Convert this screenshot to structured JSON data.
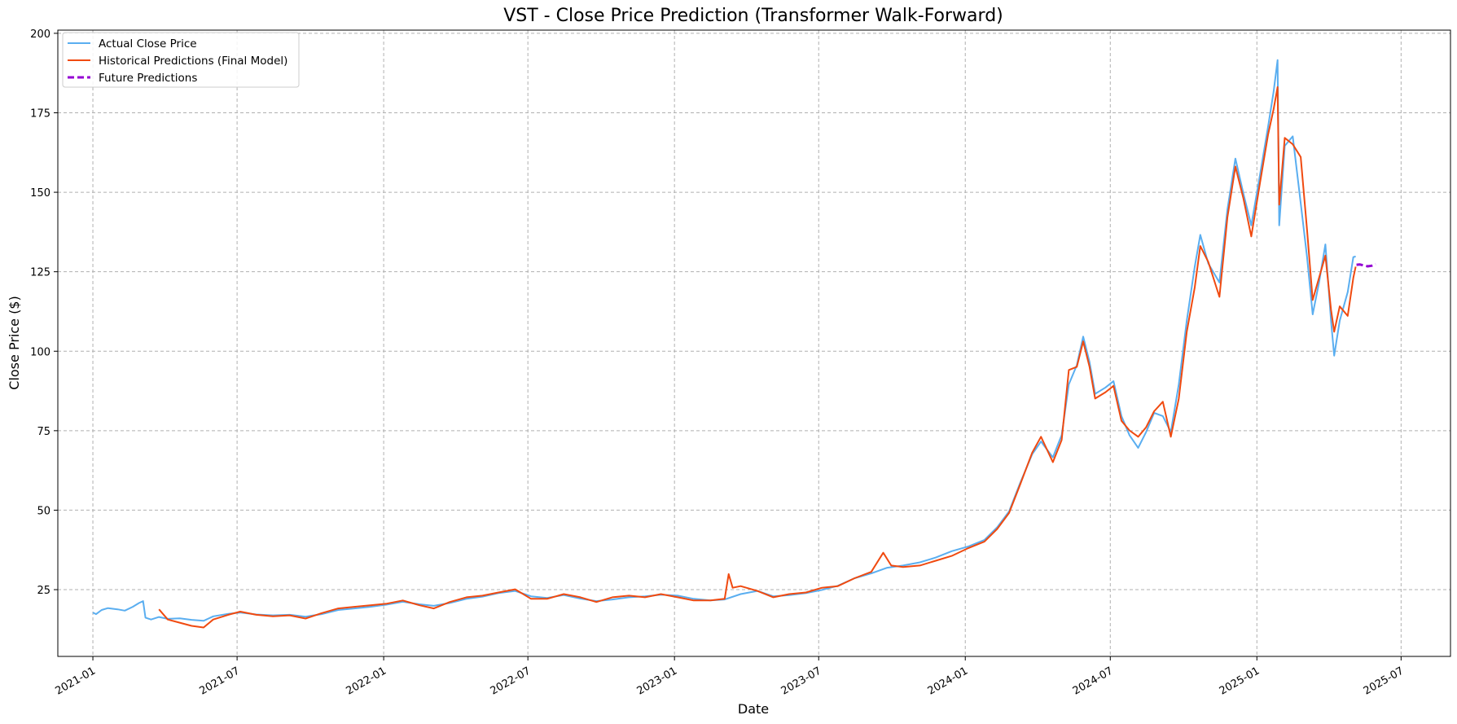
{
  "chart_data": {
    "type": "line",
    "title": "VST - Close Price Prediction (Transformer Walk-Forward)",
    "xlabel": "Date",
    "ylabel": "Close Price ($)",
    "xlim": [
      "2020-11-18",
      "2025-09-01"
    ],
    "ylim": [
      4,
      201
    ],
    "x_ticks": [
      "2021-01",
      "2021-07",
      "2022-01",
      "2022-07",
      "2023-01",
      "2023-07",
      "2024-01",
      "2024-07",
      "2025-01",
      "2025-07"
    ],
    "y_ticks": [
      25,
      50,
      75,
      100,
      125,
      150,
      175,
      200
    ],
    "grid": true,
    "legend_position": "upper-left",
    "series": [
      {
        "name": "Actual Close Price",
        "color": "#5aaef0",
        "style": "solid",
        "points": [
          [
            "2021-01-01",
            17.8
          ],
          [
            "2021-01-05",
            17.3
          ],
          [
            "2021-01-12",
            18.6
          ],
          [
            "2021-01-20",
            19.2
          ],
          [
            "2021-02-01",
            18.8
          ],
          [
            "2021-02-10",
            18.4
          ],
          [
            "2021-02-20",
            19.6
          ],
          [
            "2021-02-28",
            20.8
          ],
          [
            "2021-03-05",
            21.4
          ],
          [
            "2021-03-08",
            16.2
          ],
          [
            "2021-03-15",
            15.6
          ],
          [
            "2021-03-25",
            16.4
          ],
          [
            "2021-04-05",
            15.8
          ],
          [
            "2021-04-20",
            16.0
          ],
          [
            "2021-05-05",
            15.5
          ],
          [
            "2021-05-20",
            15.2
          ],
          [
            "2021-06-01",
            16.6
          ],
          [
            "2021-06-20",
            17.4
          ],
          [
            "2021-07-05",
            17.8
          ],
          [
            "2021-07-25",
            17.2
          ],
          [
            "2021-08-15",
            16.9
          ],
          [
            "2021-09-05",
            17.1
          ],
          [
            "2021-09-25",
            16.5
          ],
          [
            "2021-10-15",
            17.3
          ],
          [
            "2021-11-05",
            18.6
          ],
          [
            "2021-11-25",
            19.1
          ],
          [
            "2021-12-15",
            19.6
          ],
          [
            "2022-01-05",
            20.3
          ],
          [
            "2022-01-25",
            21.2
          ],
          [
            "2022-02-15",
            20.4
          ],
          [
            "2022-03-05",
            19.9
          ],
          [
            "2022-03-25",
            20.8
          ],
          [
            "2022-04-15",
            22.1
          ],
          [
            "2022-05-05",
            22.8
          ],
          [
            "2022-05-25",
            23.9
          ],
          [
            "2022-06-15",
            24.6
          ],
          [
            "2022-07-05",
            22.9
          ],
          [
            "2022-07-25",
            22.4
          ],
          [
            "2022-08-15",
            23.3
          ],
          [
            "2022-09-05",
            22.2
          ],
          [
            "2022-09-25",
            21.4
          ],
          [
            "2022-10-15",
            21.9
          ],
          [
            "2022-11-05",
            22.6
          ],
          [
            "2022-11-25",
            22.9
          ],
          [
            "2022-12-15",
            23.4
          ],
          [
            "2023-01-05",
            23.1
          ],
          [
            "2023-01-25",
            22.1
          ],
          [
            "2023-02-15",
            21.6
          ],
          [
            "2023-03-05",
            21.9
          ],
          [
            "2023-03-25",
            23.6
          ],
          [
            "2023-04-15",
            24.6
          ],
          [
            "2023-05-05",
            22.9
          ],
          [
            "2023-05-25",
            23.3
          ],
          [
            "2023-06-15",
            23.9
          ],
          [
            "2023-07-05",
            24.9
          ],
          [
            "2023-07-25",
            26.2
          ],
          [
            "2023-08-15",
            28.6
          ],
          [
            "2023-09-05",
            30.1
          ],
          [
            "2023-09-25",
            31.9
          ],
          [
            "2023-10-15",
            32.6
          ],
          [
            "2023-11-05",
            33.6
          ],
          [
            "2023-11-25",
            35.1
          ],
          [
            "2023-12-15",
            37.1
          ],
          [
            "2024-01-05",
            38.6
          ],
          [
            "2024-01-25",
            40.6
          ],
          [
            "2024-02-10",
            44.6
          ],
          [
            "2024-02-25",
            49.6
          ],
          [
            "2024-03-10",
            58.6
          ],
          [
            "2024-03-25",
            67.6
          ],
          [
            "2024-04-05",
            71.6
          ],
          [
            "2024-04-20",
            66.6
          ],
          [
            "2024-05-01",
            73.6
          ],
          [
            "2024-05-10",
            89.6
          ],
          [
            "2024-05-20",
            95.6
          ],
          [
            "2024-05-28",
            104.6
          ],
          [
            "2024-06-05",
            96.6
          ],
          [
            "2024-06-12",
            86.6
          ],
          [
            "2024-06-25",
            88.6
          ],
          [
            "2024-07-05",
            90.6
          ],
          [
            "2024-07-15",
            79.6
          ],
          [
            "2024-07-25",
            73.6
          ],
          [
            "2024-08-05",
            69.6
          ],
          [
            "2024-08-15",
            74.6
          ],
          [
            "2024-08-25",
            80.6
          ],
          [
            "2024-09-05",
            79.6
          ],
          [
            "2024-09-15",
            74.6
          ],
          [
            "2024-09-25",
            89.6
          ],
          [
            "2024-10-05",
            109.6
          ],
          [
            "2024-10-15",
            126.6
          ],
          [
            "2024-10-22",
            136.6
          ],
          [
            "2024-11-01",
            127.6
          ],
          [
            "2024-11-15",
            121.6
          ],
          [
            "2024-11-25",
            144.6
          ],
          [
            "2024-12-05",
            160.6
          ],
          [
            "2024-12-15",
            149.6
          ],
          [
            "2024-12-25",
            139.6
          ],
          [
            "2025-01-05",
            155.6
          ],
          [
            "2025-01-15",
            170.6
          ],
          [
            "2025-01-22",
            181.6
          ],
          [
            "2025-01-27",
            191.6
          ],
          [
            "2025-01-29",
            139.6
          ],
          [
            "2025-02-05",
            164.6
          ],
          [
            "2025-02-15",
            167.6
          ],
          [
            "2025-02-25",
            146.6
          ],
          [
            "2025-03-05",
            129.6
          ],
          [
            "2025-03-12",
            111.6
          ],
          [
            "2025-03-20",
            121.6
          ],
          [
            "2025-03-28",
            133.6
          ],
          [
            "2025-04-04",
            109.6
          ],
          [
            "2025-04-08",
            98.6
          ],
          [
            "2025-04-15",
            109.6
          ],
          [
            "2025-04-25",
            118.6
          ],
          [
            "2025-05-02",
            129.6
          ],
          [
            "2025-05-05",
            129.8
          ]
        ]
      },
      {
        "name": "Historical Predictions (Final Model)",
        "color": "#f04a10",
        "style": "solid",
        "points": [
          [
            "2021-03-25",
            18.8
          ],
          [
            "2021-04-05",
            15.6
          ],
          [
            "2021-04-20",
            14.6
          ],
          [
            "2021-05-05",
            13.6
          ],
          [
            "2021-05-20",
            13.1
          ],
          [
            "2021-06-01",
            15.6
          ],
          [
            "2021-06-20",
            17.1
          ],
          [
            "2021-07-05",
            18.1
          ],
          [
            "2021-07-25",
            17.1
          ],
          [
            "2021-08-15",
            16.6
          ],
          [
            "2021-09-05",
            16.9
          ],
          [
            "2021-09-25",
            15.9
          ],
          [
            "2021-10-15",
            17.6
          ],
          [
            "2021-11-05",
            19.1
          ],
          [
            "2021-11-25",
            19.6
          ],
          [
            "2021-12-15",
            20.1
          ],
          [
            "2022-01-05",
            20.6
          ],
          [
            "2022-01-25",
            21.6
          ],
          [
            "2022-02-15",
            20.1
          ],
          [
            "2022-03-05",
            19.1
          ],
          [
            "2022-03-25",
            21.1
          ],
          [
            "2022-04-15",
            22.6
          ],
          [
            "2022-05-05",
            23.1
          ],
          [
            "2022-05-25",
            24.1
          ],
          [
            "2022-06-15",
            25.1
          ],
          [
            "2022-07-05",
            22.1
          ],
          [
            "2022-07-25",
            22.1
          ],
          [
            "2022-08-15",
            23.6
          ],
          [
            "2022-09-05",
            22.6
          ],
          [
            "2022-09-25",
            21.1
          ],
          [
            "2022-10-15",
            22.6
          ],
          [
            "2022-11-05",
            23.1
          ],
          [
            "2022-11-25",
            22.6
          ],
          [
            "2022-12-15",
            23.6
          ],
          [
            "2023-01-05",
            22.6
          ],
          [
            "2023-01-25",
            21.6
          ],
          [
            "2023-02-15",
            21.6
          ],
          [
            "2023-03-05",
            22.1
          ],
          [
            "2023-03-10",
            29.9
          ],
          [
            "2023-03-15",
            25.6
          ],
          [
            "2023-03-25",
            26.1
          ],
          [
            "2023-04-15",
            24.6
          ],
          [
            "2023-05-05",
            22.6
          ],
          [
            "2023-05-25",
            23.6
          ],
          [
            "2023-06-15",
            24.1
          ],
          [
            "2023-07-05",
            25.6
          ],
          [
            "2023-07-25",
            26.1
          ],
          [
            "2023-08-15",
            28.6
          ],
          [
            "2023-09-05",
            30.6
          ],
          [
            "2023-09-20",
            36.6
          ],
          [
            "2023-09-30",
            32.6
          ],
          [
            "2023-10-15",
            32.1
          ],
          [
            "2023-11-05",
            32.6
          ],
          [
            "2023-11-25",
            34.1
          ],
          [
            "2023-12-15",
            35.6
          ],
          [
            "2024-01-05",
            38.1
          ],
          [
            "2024-01-25",
            40.1
          ],
          [
            "2024-02-10",
            44.1
          ],
          [
            "2024-02-25",
            49.1
          ],
          [
            "2024-03-10",
            58.1
          ],
          [
            "2024-03-25",
            68.1
          ],
          [
            "2024-04-05",
            73.1
          ],
          [
            "2024-04-20",
            65.1
          ],
          [
            "2024-05-01",
            72.1
          ],
          [
            "2024-05-10",
            94.1
          ],
          [
            "2024-05-20",
            95.1
          ],
          [
            "2024-05-28",
            103.1
          ],
          [
            "2024-06-05",
            95.1
          ],
          [
            "2024-06-12",
            85.1
          ],
          [
            "2024-06-25",
            87.1
          ],
          [
            "2024-07-05",
            89.1
          ],
          [
            "2024-07-15",
            78.1
          ],
          [
            "2024-07-25",
            75.1
          ],
          [
            "2024-08-05",
            73.1
          ],
          [
            "2024-08-15",
            76.1
          ],
          [
            "2024-08-25",
            81.1
          ],
          [
            "2024-09-05",
            84.1
          ],
          [
            "2024-09-15",
            73.1
          ],
          [
            "2024-09-25",
            85.1
          ],
          [
            "2024-10-05",
            106.1
          ],
          [
            "2024-10-15",
            120.1
          ],
          [
            "2024-10-22",
            133.1
          ],
          [
            "2024-11-01",
            128.1
          ],
          [
            "2024-11-15",
            117.1
          ],
          [
            "2024-11-25",
            142.1
          ],
          [
            "2024-12-05",
            158.1
          ],
          [
            "2024-12-15",
            148.1
          ],
          [
            "2024-12-25",
            136.1
          ],
          [
            "2025-01-05",
            153.1
          ],
          [
            "2025-01-15",
            168.1
          ],
          [
            "2025-01-22",
            176.1
          ],
          [
            "2025-01-27",
            183.1
          ],
          [
            "2025-01-29",
            146.1
          ],
          [
            "2025-02-05",
            167.1
          ],
          [
            "2025-02-15",
            165.1
          ],
          [
            "2025-02-25",
            161.1
          ],
          [
            "2025-03-05",
            138.1
          ],
          [
            "2025-03-12",
            116.1
          ],
          [
            "2025-03-20",
            123.1
          ],
          [
            "2025-03-28",
            130.1
          ],
          [
            "2025-04-04",
            113.1
          ],
          [
            "2025-04-08",
            106.1
          ],
          [
            "2025-04-15",
            114.1
          ],
          [
            "2025-04-25",
            111.1
          ],
          [
            "2025-05-02",
            123.1
          ],
          [
            "2025-05-05",
            126.6
          ]
        ]
      },
      {
        "name": "Future Predictions",
        "color": "#9400d3",
        "style": "dashed",
        "points": [
          [
            "2025-05-06",
            127.2
          ],
          [
            "2025-05-10",
            127.3
          ],
          [
            "2025-05-15",
            127.0
          ],
          [
            "2025-05-20",
            126.7
          ],
          [
            "2025-05-25",
            126.9
          ],
          [
            "2025-05-30",
            127.4
          ]
        ]
      }
    ]
  }
}
